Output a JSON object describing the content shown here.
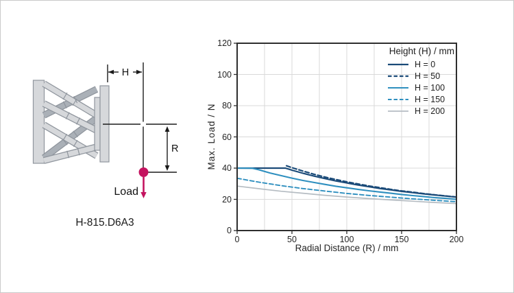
{
  "figure": {
    "model_label": "H-815.D6A3",
    "dim_h_label": "H",
    "dim_r_label": "R",
    "load_label": "Load",
    "accent_color": "#c4135f"
  },
  "chart_data": {
    "type": "line",
    "title": "",
    "xlabel": "Radial Distance (R) / mm",
    "ylabel": "Max. Load / N",
    "xlim": [
      0,
      200
    ],
    "ylim": [
      0,
      120
    ],
    "x_major_ticks": [
      0,
      50,
      100,
      150,
      200
    ],
    "x_minor_step": 25,
    "y_ticks": [
      0,
      20,
      40,
      60,
      80,
      100,
      120
    ],
    "grid": true,
    "grid_color": "#d9d9d9",
    "axis_color": "#2d2d2d",
    "legend_position": "top-right",
    "legend_title": "Height (H) / mm",
    "series": [
      {
        "name": "H = 0",
        "color": "#1a4a78",
        "dash": "solid",
        "width": 2.2,
        "points": [
          [
            0,
            40
          ],
          [
            44,
            40
          ],
          [
            50,
            38.7
          ],
          [
            60,
            36.7
          ],
          [
            70,
            34.9
          ],
          [
            80,
            33.3
          ],
          [
            90,
            31.8
          ],
          [
            100,
            30.5
          ],
          [
            110,
            29.2
          ],
          [
            120,
            28.1
          ],
          [
            130,
            27.0
          ],
          [
            140,
            26.1
          ],
          [
            150,
            25.1
          ],
          [
            160,
            24.3
          ],
          [
            170,
            23.5
          ],
          [
            180,
            22.8
          ],
          [
            190,
            22.1
          ],
          [
            200,
            21.4
          ]
        ]
      },
      {
        "name": "H = 50",
        "color": "#1a4a78",
        "dash": "dashed",
        "width": 2.2,
        "points": [
          [
            45,
            41.5
          ],
          [
            50,
            40.3
          ],
          [
            60,
            38.1
          ],
          [
            70,
            36.1
          ],
          [
            80,
            34.3
          ],
          [
            90,
            32.7
          ],
          [
            100,
            31.2
          ],
          [
            110,
            29.9
          ],
          [
            120,
            28.6
          ],
          [
            130,
            27.5
          ],
          [
            140,
            26.4
          ],
          [
            150,
            25.4
          ],
          [
            160,
            24.6
          ],
          [
            170,
            23.7
          ],
          [
            180,
            22.9
          ],
          [
            190,
            22.2
          ],
          [
            200,
            21.5
          ]
        ]
      },
      {
        "name": "H = 100",
        "color": "#2e8fbf",
        "dash": "solid",
        "width": 2.1,
        "points": [
          [
            0,
            40
          ],
          [
            14,
            39.9
          ],
          [
            20,
            38.9
          ],
          [
            30,
            36.9
          ],
          [
            40,
            35.2
          ],
          [
            50,
            33.6
          ],
          [
            60,
            32.1
          ],
          [
            70,
            30.8
          ],
          [
            80,
            29.6
          ],
          [
            90,
            28.4
          ],
          [
            100,
            27.4
          ],
          [
            110,
            26.4
          ],
          [
            120,
            25.5
          ],
          [
            130,
            24.7
          ],
          [
            140,
            23.9
          ],
          [
            150,
            23.1
          ],
          [
            160,
            22.4
          ],
          [
            170,
            21.8
          ],
          [
            180,
            21.1
          ],
          [
            190,
            20.6
          ],
          [
            200,
            20.0
          ]
        ]
      },
      {
        "name": "H = 150",
        "color": "#2e8fbf",
        "dash": "dashed",
        "width": 1.9,
        "points": [
          [
            0,
            33.5
          ],
          [
            20,
            31.0
          ],
          [
            40,
            28.8
          ],
          [
            60,
            26.9
          ],
          [
            80,
            25.3
          ],
          [
            100,
            23.8
          ],
          [
            120,
            22.5
          ],
          [
            140,
            21.4
          ],
          [
            160,
            20.3
          ],
          [
            180,
            19.4
          ],
          [
            200,
            18.5
          ]
        ]
      },
      {
        "name": "H = 200",
        "color": "#b5bcc2",
        "dash": "solid",
        "width": 1.7,
        "points": [
          [
            0,
            28.5
          ],
          [
            20,
            26.8
          ],
          [
            40,
            25.2
          ],
          [
            60,
            23.9
          ],
          [
            80,
            22.6
          ],
          [
            100,
            21.5
          ],
          [
            120,
            20.5
          ],
          [
            140,
            19.6
          ],
          [
            160,
            18.8
          ],
          [
            180,
            18.0
          ],
          [
            200,
            17.3
          ]
        ]
      }
    ]
  }
}
